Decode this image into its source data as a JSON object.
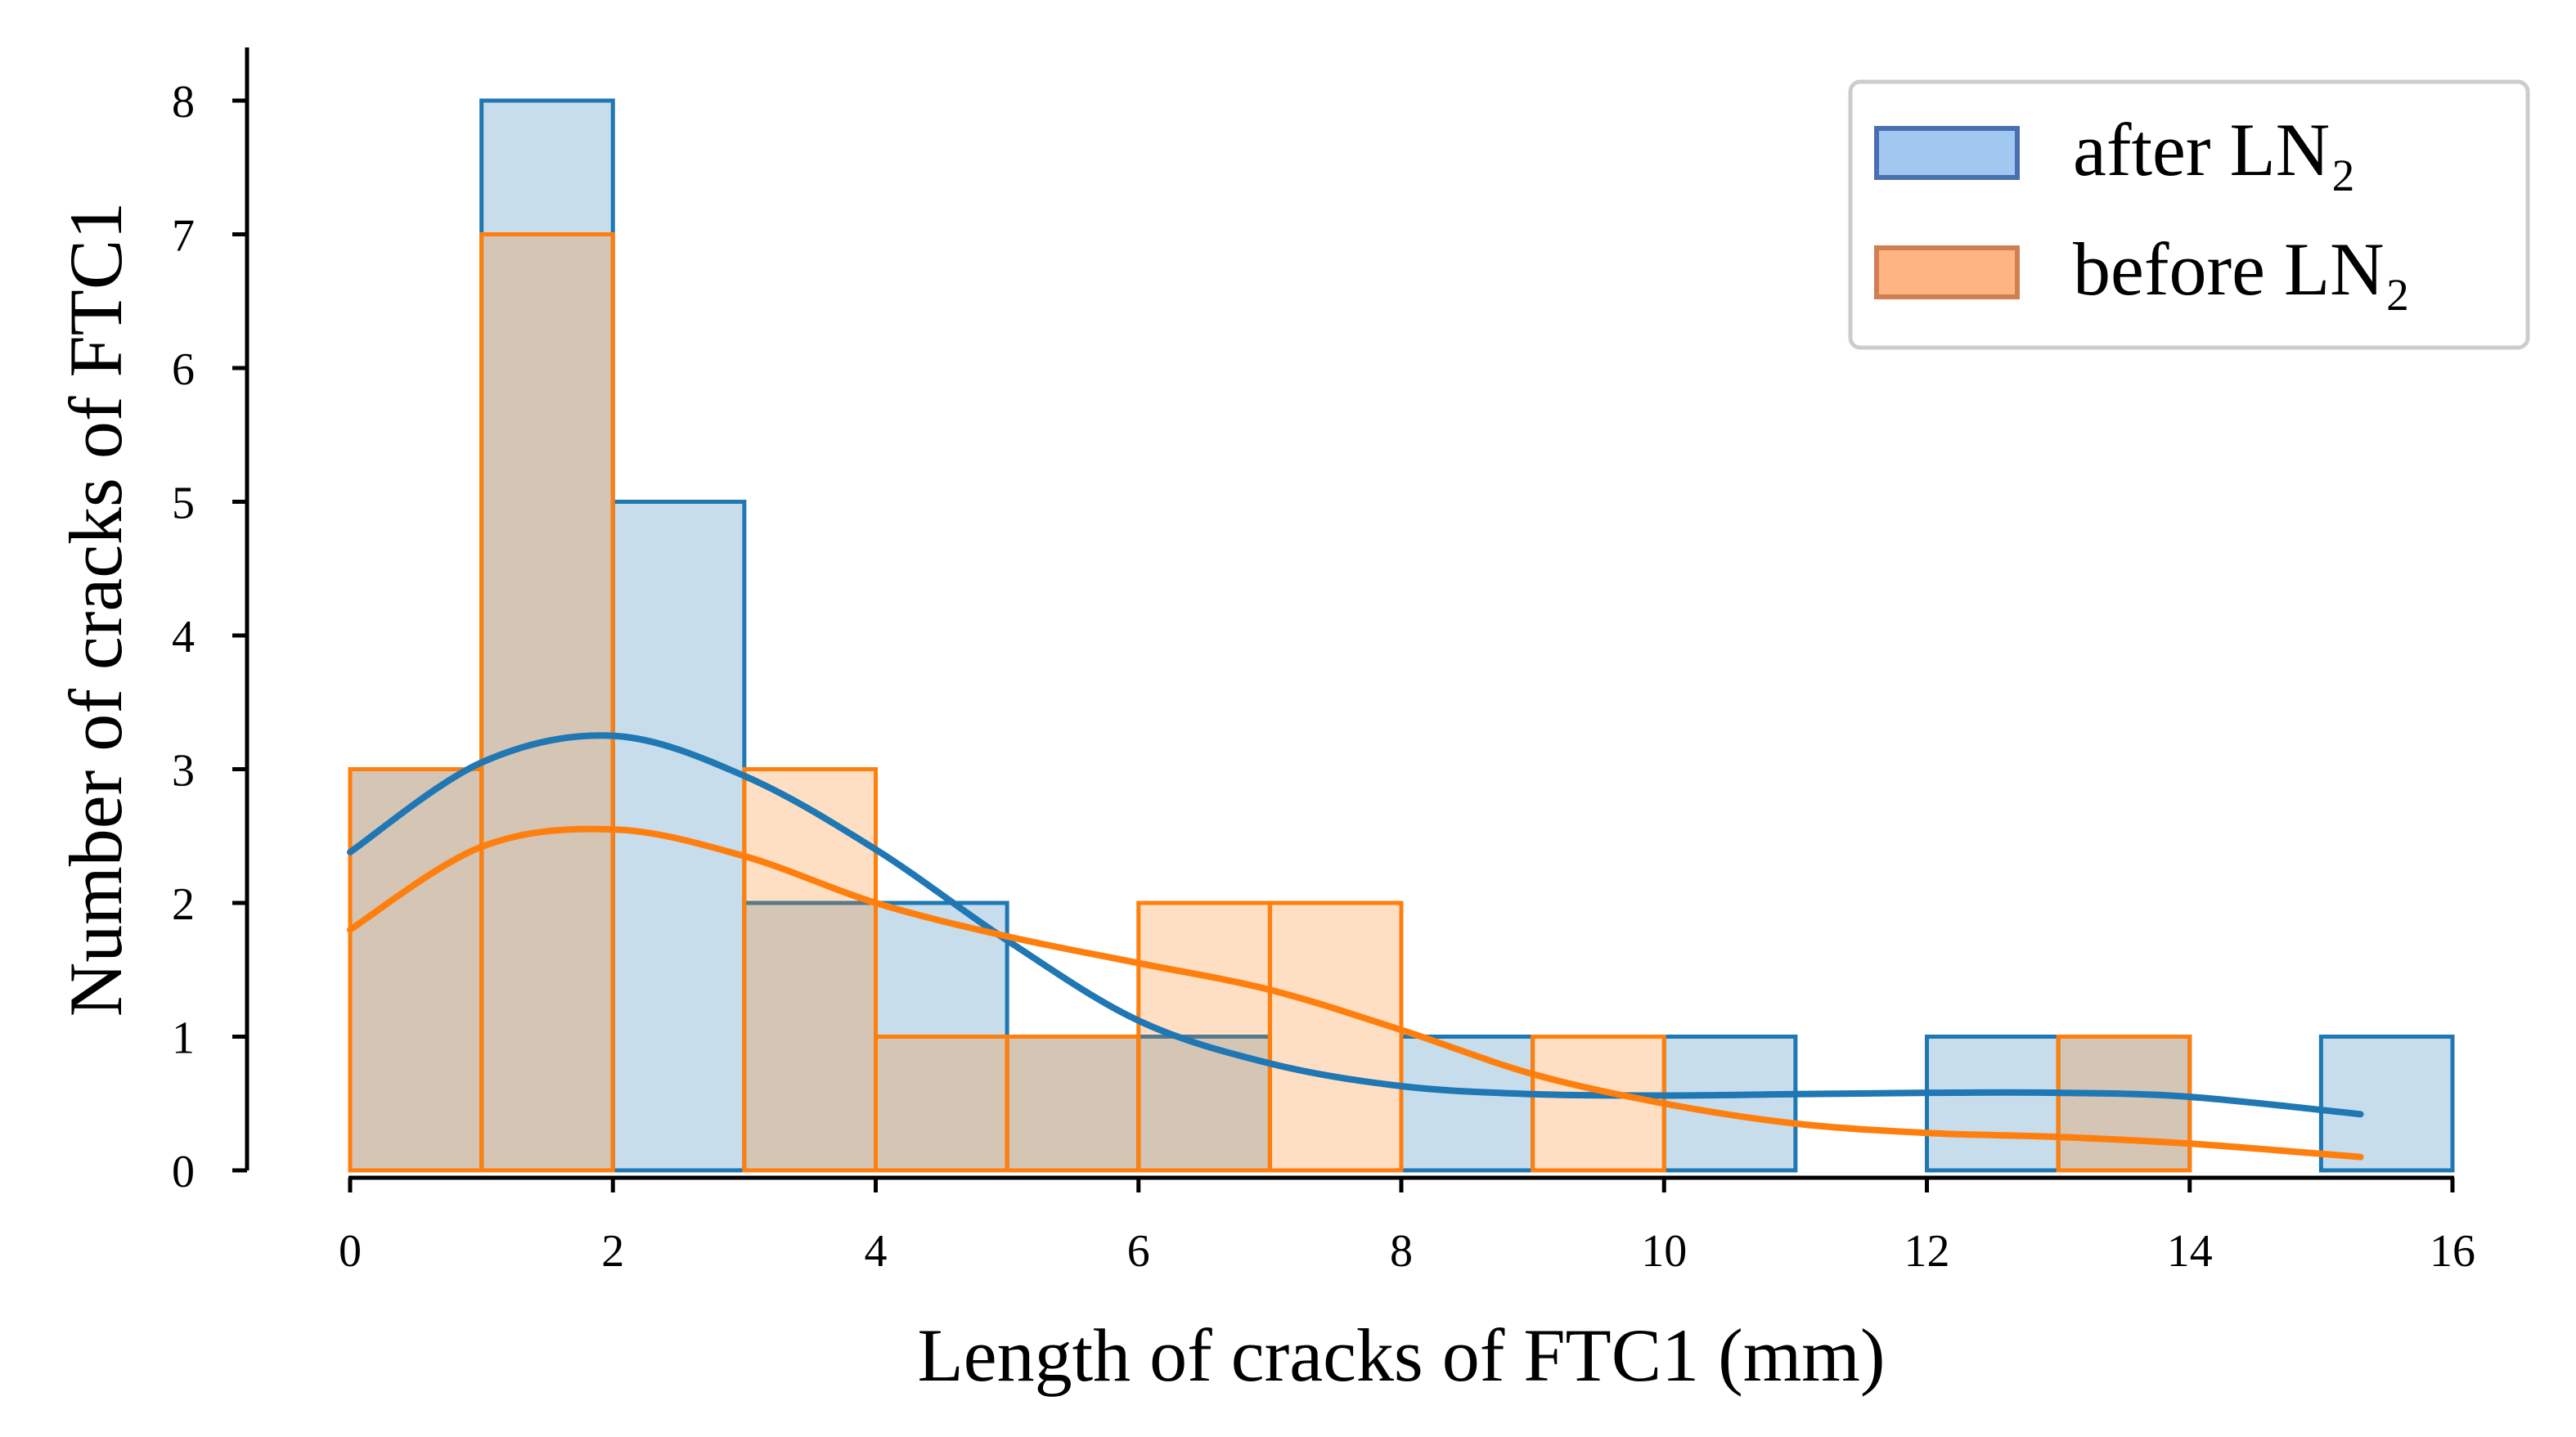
{
  "chart_data": {
    "type": "histogram",
    "xlabel": "Length of cracks of FTC1 (mm)",
    "ylabel": "Number of cracks of FTC1",
    "xlim": [
      0,
      16
    ],
    "ylim": [
      0,
      8.4
    ],
    "xticks": [
      0,
      2,
      4,
      6,
      8,
      10,
      12,
      14,
      16
    ],
    "yticks": [
      0,
      1,
      2,
      3,
      4,
      5,
      6,
      7,
      8
    ],
    "grid": false,
    "legend_position": "top-right",
    "bins": [
      0,
      1,
      2,
      3,
      4,
      5,
      6,
      7,
      8,
      9,
      10,
      11,
      12,
      13,
      14,
      15,
      16
    ],
    "series": [
      {
        "name": "after LN₂",
        "color": "#1f77b4",
        "legend_fill": "#a0c8f0",
        "counts": [
          3,
          8,
          5,
          2,
          2,
          1,
          1,
          0,
          1,
          0,
          1,
          0,
          1,
          1,
          0,
          1
        ],
        "kde": {
          "x": [
            0,
            1,
            2,
            3,
            4,
            5,
            6,
            7,
            8,
            9,
            10,
            11,
            12,
            13,
            14,
            15.3
          ],
          "y": [
            2.38,
            3.05,
            3.25,
            2.95,
            2.4,
            1.72,
            1.12,
            0.8,
            0.63,
            0.57,
            0.56,
            0.57,
            0.58,
            0.58,
            0.55,
            0.42
          ]
        }
      },
      {
        "name": "before LN₂",
        "color": "#ff7f0e",
        "legend_fill": "#ffb482",
        "counts": [
          3,
          7,
          0,
          3,
          1,
          1,
          2,
          2,
          0,
          1,
          0,
          0,
          0,
          1,
          0,
          0
        ],
        "kde": {
          "x": [
            0,
            1,
            2,
            3,
            4,
            5,
            6,
            7,
            8,
            9,
            10,
            11,
            12,
            13,
            14,
            15.3
          ],
          "y": [
            1.8,
            2.42,
            2.55,
            2.35,
            2.0,
            1.75,
            1.55,
            1.35,
            1.05,
            0.72,
            0.5,
            0.35,
            0.28,
            0.25,
            0.2,
            0.1
          ]
        }
      }
    ]
  }
}
